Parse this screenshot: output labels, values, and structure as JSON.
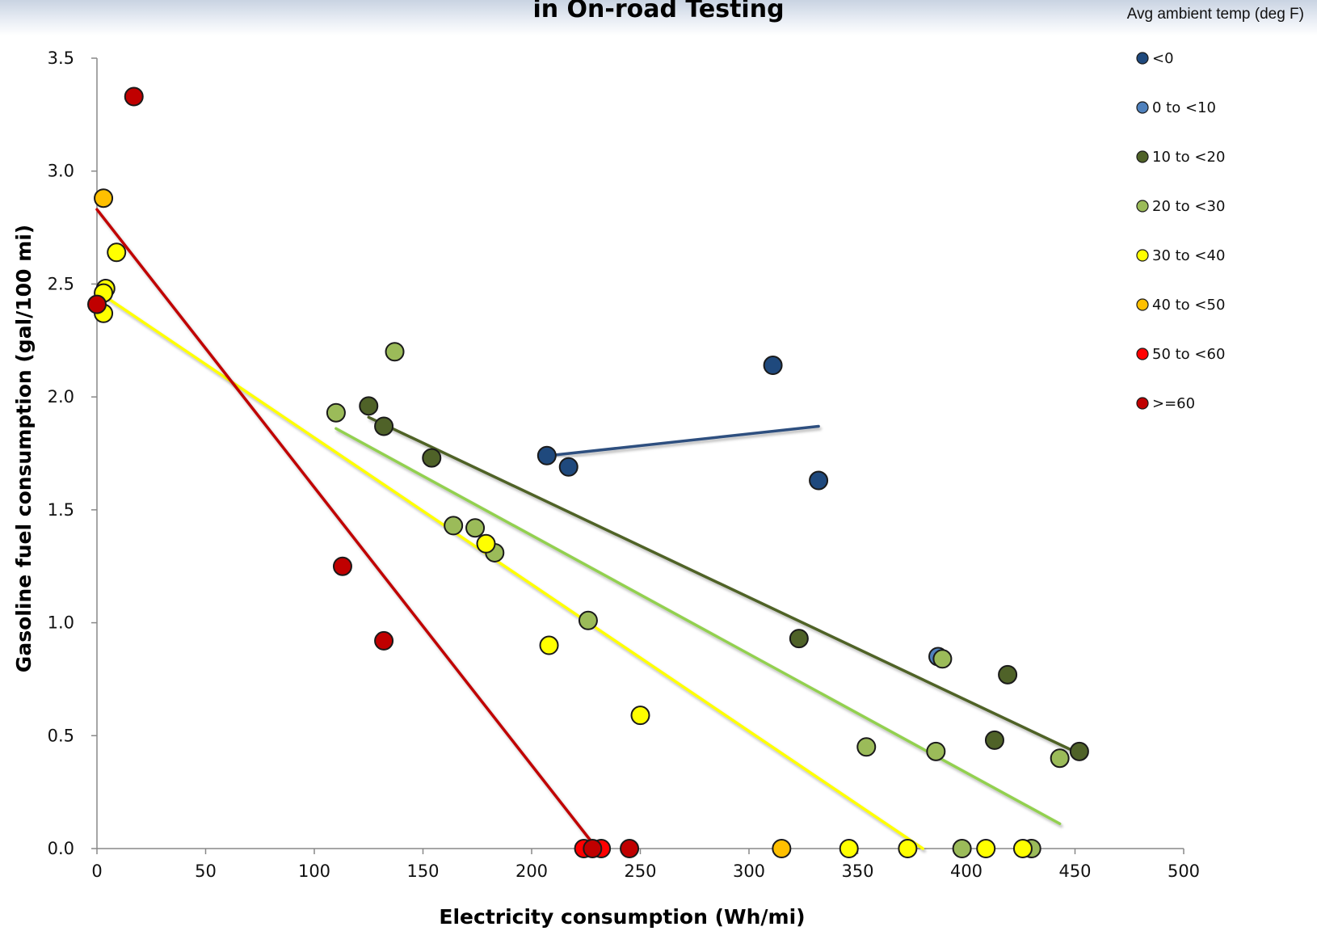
{
  "chart_data": {
    "type": "scatter",
    "title": "in On-road Testing",
    "xlabel": "Electricity consumption (Wh/mi)",
    "ylabel": "Gasoline fuel consumption (gal/100 mi)",
    "xlim": [
      0,
      500
    ],
    "ylim": [
      0,
      3.5
    ],
    "x_ticks": [
      "0",
      "50",
      "100",
      "150",
      "200",
      "250",
      "300",
      "350",
      "400",
      "450",
      "500"
    ],
    "y_ticks": [
      "0.0",
      "0.5",
      "1.0",
      "1.5",
      "2.0",
      "2.5",
      "3.0",
      "3.5"
    ],
    "grid": false,
    "legend": {
      "title": "Avg ambient temp (deg F)",
      "placement": "right"
    },
    "series": [
      {
        "name": "<0",
        "color": "#1f497d",
        "points": [
          [
            207,
            1.74
          ],
          [
            217,
            1.69
          ],
          [
            311,
            2.14
          ],
          [
            332,
            1.63
          ]
        ],
        "trendline": {
          "color": "#2e4f7f",
          "from": [
            208,
            1.74
          ],
          "to": [
            332,
            1.87
          ]
        }
      },
      {
        "name": "0 to <10",
        "color": "#4f81bd",
        "points": [
          [
            387,
            0.85
          ]
        ]
      },
      {
        "name": "10 to <20",
        "color": "#4f6228",
        "points": [
          [
            125,
            1.96
          ],
          [
            132,
            1.87
          ],
          [
            154,
            1.73
          ],
          [
            323,
            0.93
          ],
          [
            419,
            0.77
          ],
          [
            413,
            0.48
          ],
          [
            452,
            0.43
          ]
        ],
        "trendline": {
          "color": "#4f6228",
          "from": [
            125,
            1.91
          ],
          "to": [
            452,
            0.42
          ]
        }
      },
      {
        "name": "20 to <30",
        "color": "#9bbb59",
        "points": [
          [
            110,
            1.93
          ],
          [
            137,
            2.2
          ],
          [
            164,
            1.43
          ],
          [
            174,
            1.42
          ],
          [
            183,
            1.31
          ],
          [
            226,
            1.01
          ],
          [
            354,
            0.45
          ],
          [
            386,
            0.43
          ],
          [
            389,
            0.84
          ],
          [
            443,
            0.4
          ],
          [
            398,
            0.0
          ],
          [
            430,
            0.0
          ]
        ],
        "trendline": {
          "color": "#92d050",
          "from": [
            110,
            1.86
          ],
          "to": [
            443,
            0.11
          ]
        }
      },
      {
        "name": "30 to <40",
        "color": "#ffff00",
        "points": [
          [
            4,
            2.48
          ],
          [
            3,
            2.37
          ],
          [
            3,
            2.46
          ],
          [
            9,
            2.64
          ],
          [
            179,
            1.35
          ],
          [
            208,
            0.9
          ],
          [
            250,
            0.59
          ],
          [
            346,
            0.0
          ],
          [
            373,
            0.0
          ],
          [
            409,
            0.0
          ],
          [
            426,
            0.0
          ]
        ],
        "trendline": {
          "color": "#ffff00",
          "from": [
            3,
            2.45
          ],
          "to": [
            380,
            0.0
          ]
        }
      },
      {
        "name": "40 to <50",
        "color": "#ffc000",
        "points": [
          [
            3,
            2.88
          ],
          [
            315,
            0.0
          ]
        ]
      },
      {
        "name": "50 to <60",
        "color": "#ff0000",
        "points": [
          [
            224,
            0.0
          ],
          [
            232,
            0.0
          ]
        ]
      },
      {
        "name": ">=60",
        "color": "#c00000",
        "points": [
          [
            17,
            3.33
          ],
          [
            0,
            2.41
          ],
          [
            113,
            1.25
          ],
          [
            132,
            0.92
          ],
          [
            228,
            0.0
          ],
          [
            245,
            0.0
          ]
        ],
        "trendline": {
          "color": "#c00000",
          "from": [
            0,
            2.83
          ],
          "to": [
            230,
            0.0
          ]
        }
      }
    ]
  }
}
